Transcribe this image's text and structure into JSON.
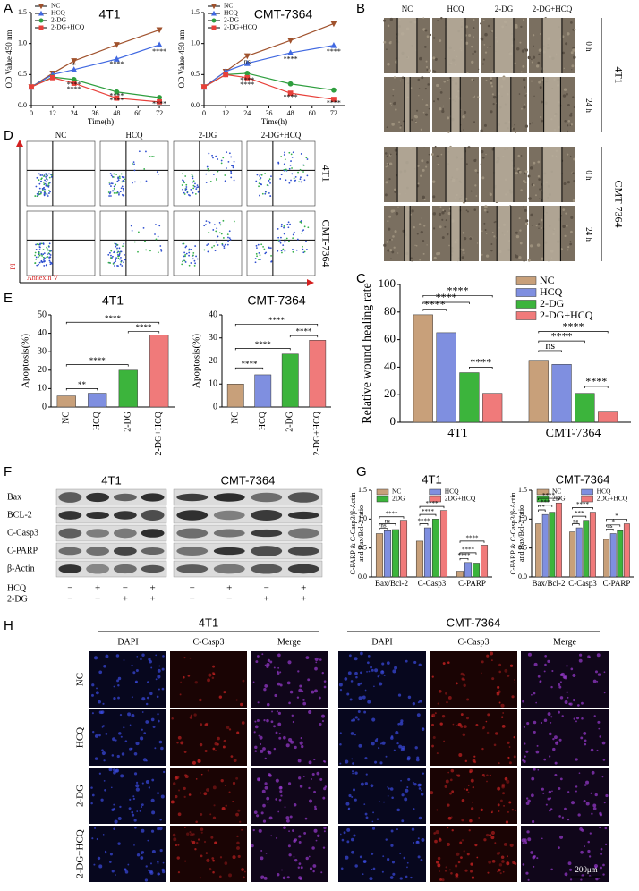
{
  "panel_labels": [
    "A",
    "B",
    "C",
    "D",
    "E",
    "F",
    "G",
    "H"
  ],
  "chart_data": [
    {
      "type": "line",
      "title": "4T1",
      "x": [
        0,
        12,
        24,
        48,
        72
      ],
      "xlim": [
        0,
        78
      ],
      "xticks": [
        0,
        12,
        24,
        36,
        48,
        60,
        72
      ],
      "xlabel": "Time(h)",
      "ylabel": "OD Value 450 nm",
      "ylim": [
        0,
        1.5
      ],
      "yticks": [
        {
          "value": 0,
          "label": "0.0"
        },
        0.5,
        {
          "value": 1,
          "label": "1.0"
        },
        1.5
      ],
      "legend": "upper left",
      "series": [
        {
          "name": "NC",
          "color": "#a0522d",
          "marker": "triangle-down",
          "values": [
            0.3,
            0.52,
            0.72,
            0.98,
            1.22
          ]
        },
        {
          "name": "HCQ",
          "color": "#4169e1",
          "marker": "triangle-up",
          "values": [
            0.3,
            0.5,
            0.58,
            0.75,
            0.98
          ]
        },
        {
          "name": "2-DG",
          "color": "#2e9e3e",
          "marker": "circle",
          "values": [
            0.3,
            0.46,
            0.42,
            0.22,
            0.13
          ]
        },
        {
          "name": "2-DG+HCQ",
          "color": "#e8403a",
          "marker": "square",
          "values": [
            0.3,
            0.45,
            0.36,
            0.12,
            0.06
          ]
        }
      ],
      "annotations": [
        {
          "text": "*",
          "x": 24,
          "y": 0.64
        },
        {
          "text": "****",
          "x": 48,
          "y": 0.66
        },
        {
          "text": "****",
          "x": 72,
          "y": 0.86
        },
        {
          "text": "****",
          "x": 24,
          "y": 0.33
        },
        {
          "text": "****",
          "x": 24,
          "y": 0.26
        },
        {
          "text": "****",
          "x": 48,
          "y": 0.15
        },
        {
          "text": "****",
          "x": 48,
          "y": 0.08
        },
        {
          "text": "****",
          "x": 72,
          "y": 0.02
        }
      ]
    },
    {
      "type": "line",
      "title": "CMT-7364",
      "x": [
        0,
        12,
        24,
        48,
        72
      ],
      "xlim": [
        0,
        78
      ],
      "xticks": [
        0,
        12,
        24,
        36,
        48,
        60,
        72
      ],
      "xlabel": "Time(h)",
      "ylabel": "OD Value 450 nm",
      "ylim": [
        0,
        1.5
      ],
      "yticks": [
        {
          "value": 0,
          "label": "0.0"
        },
        0.5,
        {
          "value": 1,
          "label": "1.0"
        },
        1.5
      ],
      "legend": "upper left",
      "series": [
        {
          "name": "NC",
          "color": "#a0522d",
          "marker": "triangle-down",
          "values": [
            0.3,
            0.55,
            0.8,
            1.05,
            1.32
          ]
        },
        {
          "name": "HCQ",
          "color": "#4169e1",
          "marker": "triangle-up",
          "values": [
            0.3,
            0.55,
            0.68,
            0.85,
            0.97
          ]
        },
        {
          "name": "2-DG",
          "color": "#2e9e3e",
          "marker": "circle",
          "values": [
            0.3,
            0.5,
            0.52,
            0.35,
            0.25
          ]
        },
        {
          "name": "2-DG+HCQ",
          "color": "#e8403a",
          "marker": "square",
          "values": [
            0.3,
            0.5,
            0.45,
            0.2,
            0.1
          ]
        }
      ],
      "annotations": [
        {
          "text": "ns",
          "x": 24,
          "y": 0.7
        },
        {
          "text": "****",
          "x": 48,
          "y": 0.74
        },
        {
          "text": "****",
          "x": 72,
          "y": 0.86
        },
        {
          "text": "****",
          "x": 24,
          "y": 0.4
        },
        {
          "text": "****",
          "x": 24,
          "y": 0.33
        },
        {
          "text": "****",
          "x": 48,
          "y": 0.13
        },
        {
          "text": "****",
          "x": 72,
          "y": 0.03
        }
      ]
    },
    {
      "type": "bar",
      "ylabel": "Relative wound healing rate",
      "categories": [
        "4T1",
        "CMT-7364"
      ],
      "ylim": [
        0,
        100
      ],
      "yticks": [
        0,
        20,
        40,
        60,
        80,
        100
      ],
      "legend": "upper right",
      "series": [
        {
          "name": "NC",
          "color": "#c8a07a",
          "values": [
            78,
            45
          ]
        },
        {
          "name": "HCQ",
          "color": "#7f8fe0",
          "values": [
            65,
            42
          ]
        },
        {
          "name": "2-DG",
          "color": "#3cb43c",
          "values": [
            36,
            21
          ]
        },
        {
          "name": "2-DG+HCQ",
          "color": "#f07a7a",
          "values": [
            21,
            8
          ]
        }
      ],
      "annotations": [
        {
          "text": "****",
          "group": "4T1",
          "between": [
            "NC",
            "HCQ"
          ],
          "y": 82
        },
        {
          "text": "****",
          "group": "4T1",
          "between": [
            "NC",
            "2-DG"
          ],
          "y": 87
        },
        {
          "text": "****",
          "group": "4T1",
          "between": [
            "NC",
            "2-DG+HCQ"
          ],
          "y": 92
        },
        {
          "text": "****",
          "group": "4T1",
          "between": [
            "2-DG",
            "2-DG+HCQ"
          ],
          "y": 40
        },
        {
          "text": "ns",
          "group": "CMT-7364",
          "between": [
            "NC",
            "HCQ"
          ],
          "y": 52
        },
        {
          "text": "****",
          "group": "CMT-7364",
          "between": [
            "NC",
            "2-DG"
          ],
          "y": 59
        },
        {
          "text": "****",
          "group": "CMT-7364",
          "between": [
            "NC",
            "2-DG+HCQ"
          ],
          "y": 66
        },
        {
          "text": "****",
          "group": "CMT-7364",
          "between": [
            "2-DG",
            "2-DG+HCQ"
          ],
          "y": 26
        }
      ]
    },
    {
      "type": "bar",
      "title": "4T1",
      "ylabel": "Apoptosis(%)",
      "categories": [
        "NC",
        "HCQ",
        "2-DG",
        "2-DG+HCQ"
      ],
      "values": [
        6,
        7.5,
        20,
        39
      ],
      "colors": [
        "#c8a07a",
        "#7f8fe0",
        "#3cb43c",
        "#f07a7a"
      ],
      "xtick_rotation": 90,
      "ylim": [
        0,
        50
      ],
      "yticks": [
        0,
        10,
        20,
        30,
        40,
        50
      ],
      "annotations": [
        {
          "text": "**",
          "between": [
            "NC",
            "HCQ"
          ],
          "y": 10
        },
        {
          "text": "****",
          "between": [
            "NC",
            "2-DG"
          ],
          "y": 23
        },
        {
          "text": "****",
          "between": [
            "NC",
            "2-DG+HCQ"
          ],
          "y": 46
        },
        {
          "text": "****",
          "between": [
            "2-DG",
            "2-DG+HCQ"
          ],
          "y": 41
        }
      ]
    },
    {
      "type": "bar",
      "title": "CMT-7364",
      "ylabel": "Apoptosis(%)",
      "categories": [
        "NC",
        "HCQ",
        "2-DG",
        "2-DG+HCQ"
      ],
      "values": [
        10,
        14,
        23,
        29
      ],
      "colors": [
        "#c8a07a",
        "#7f8fe0",
        "#3cb43c",
        "#f07a7a"
      ],
      "xtick_rotation": 90,
      "ylim": [
        0,
        40
      ],
      "yticks": [
        0,
        10,
        20,
        30,
        40
      ],
      "annotations": [
        {
          "text": "****",
          "between": [
            "NC",
            "HCQ"
          ],
          "y": 17
        },
        {
          "text": "****",
          "between": [
            "NC",
            "2-DG"
          ],
          "y": 25.5
        },
        {
          "text": "****",
          "between": [
            "NC",
            "2-DG+HCQ"
          ],
          "y": 36
        },
        {
          "text": "****",
          "between": [
            "2-DG",
            "2-DG+HCQ"
          ],
          "y": 31
        }
      ]
    },
    {
      "type": "bar",
      "title": "4T1",
      "ylabel": [
        "C-PARP & C-Casp3/β-Actin",
        "and Bax/Bcl-2 ratio"
      ],
      "categories": [
        "Bax/Bcl-2",
        "C-Casp3",
        "C-PARP"
      ],
      "ylim": [
        0,
        1.5
      ],
      "yticks": [
        {
          "value": 0,
          "label": "0.0"
        },
        0.5,
        {
          "value": 1,
          "label": "1.0"
        },
        1.5
      ],
      "legend": "upper center",
      "series": [
        {
          "name": "NC",
          "color": "#c8a07a",
          "values": [
            0.75,
            0.62,
            0.1
          ]
        },
        {
          "name": "HCQ",
          "color": "#7f8fe0",
          "values": [
            0.8,
            0.85,
            0.25
          ]
        },
        {
          "name": "2DG",
          "color": "#3cb43c",
          "values": [
            0.82,
            1.0,
            0.24
          ]
        },
        {
          "name": "2DG+HCQ",
          "color": "#f07a7a",
          "values": [
            0.98,
            1.15,
            0.55
          ]
        }
      ],
      "annotations": [
        {
          "text": "ns",
          "group": "Bax/Bcl-2",
          "between": [
            "NC",
            "HCQ"
          ],
          "y": 0.84
        },
        {
          "text": "ns",
          "group": "Bax/Bcl-2",
          "between": [
            "NC",
            "2DG"
          ],
          "y": 0.92
        },
        {
          "text": "****",
          "group": "Bax/Bcl-2",
          "between": [
            "NC",
            "2DG+HCQ"
          ],
          "y": 1.04
        },
        {
          "text": "****",
          "group": "C-Casp3",
          "between": [
            "NC",
            "HCQ"
          ],
          "y": 0.92
        },
        {
          "text": "****",
          "group": "C-Casp3",
          "between": [
            "NC",
            "2DG"
          ],
          "y": 1.08
        },
        {
          "text": "****",
          "group": "C-Casp3",
          "between": [
            "NC",
            "2DG+HCQ"
          ],
          "y": 1.22
        },
        {
          "text": "****",
          "group": "C-PARP",
          "between": [
            "NC",
            "HCQ"
          ],
          "y": 0.32
        },
        {
          "text": "****",
          "group": "C-PARP",
          "between": [
            "NC",
            "2DG"
          ],
          "y": 0.42
        },
        {
          "text": "****",
          "group": "C-PARP",
          "between": [
            "NC",
            "2DG+HCQ"
          ],
          "y": 0.62
        }
      ]
    },
    {
      "type": "bar",
      "title": "CMT-7364",
      "ylabel": [
        "C-PARP & C-Casp3/β-Actin",
        "and Bax/Bcl-2 ratio"
      ],
      "categories": [
        "Bax/Bcl-2",
        "C-Casp3",
        "C-PARP"
      ],
      "ylim": [
        0,
        1.5
      ],
      "yticks": [
        {
          "value": 0,
          "label": "0.0"
        },
        0.5,
        {
          "value": 1,
          "label": "1.0"
        },
        1.5
      ],
      "legend": "upper center",
      "series": [
        {
          "name": "NC",
          "color": "#c8a07a",
          "values": [
            0.92,
            0.78,
            0.65
          ]
        },
        {
          "name": "HCQ",
          "color": "#7f8fe0",
          "values": [
            1.08,
            0.85,
            0.75
          ]
        },
        {
          "name": "2DG",
          "color": "#3cb43c",
          "values": [
            1.12,
            0.98,
            0.8
          ]
        },
        {
          "name": "2DG+HCQ",
          "color": "#f07a7a",
          "values": [
            1.28,
            1.12,
            0.92
          ]
        }
      ],
      "annotations": [
        {
          "text": "**",
          "group": "Bax/Bcl-2",
          "between": [
            "NC",
            "HCQ"
          ],
          "y": 1.16
        },
        {
          "text": "***",
          "group": "Bax/Bcl-2",
          "between": [
            "NC",
            "2DG"
          ],
          "y": 1.24
        },
        {
          "text": "****",
          "group": "Bax/Bcl-2",
          "between": [
            "NC",
            "2DG+HCQ"
          ],
          "y": 1.36
        },
        {
          "text": "ns",
          "group": "C-Casp3",
          "between": [
            "NC",
            "HCQ"
          ],
          "y": 0.92
        },
        {
          "text": "***",
          "group": "C-Casp3",
          "between": [
            "NC",
            "2DG"
          ],
          "y": 1.05
        },
        {
          "text": "****",
          "group": "C-Casp3",
          "between": [
            "NC",
            "2DG+HCQ"
          ],
          "y": 1.2
        },
        {
          "text": "ns",
          "group": "C-PARP",
          "between": [
            "NC",
            "HCQ"
          ],
          "y": 0.83
        },
        {
          "text": "*",
          "group": "C-PARP",
          "between": [
            "NC",
            "2DG"
          ],
          "y": 0.9
        },
        {
          "text": "*",
          "group": "C-PARP",
          "between": [
            "NC",
            "2DG+HCQ"
          ],
          "y": 1.0
        }
      ]
    }
  ],
  "scratch": {
    "columns": [
      "NC",
      "HCQ",
      "2-DG",
      "2-DG+HCQ"
    ],
    "times": [
      "0 h",
      "24 h"
    ],
    "cell_lines": [
      "4T1",
      "CMT-7364"
    ]
  },
  "flow": {
    "columns": [
      "NC",
      "HCQ",
      "2-DG",
      "2-DG+HCQ"
    ],
    "cell_lines": [
      "4T1",
      "CMT-7364"
    ],
    "y_axis": "PI",
    "x_axis": "Annexin V"
  },
  "western": {
    "cell_lines": [
      "4T1",
      "CMT-7364"
    ],
    "proteins": [
      "Bax",
      "BCL-2",
      "C-Casp3",
      "C-PARP",
      "β-Actin"
    ],
    "treatments": [
      {
        "name": "HCQ",
        "signs": [
          "−",
          "+",
          "−",
          "+"
        ]
      },
      {
        "name": "2-DG",
        "signs": [
          "−",
          "−",
          "+",
          "+"
        ]
      }
    ]
  },
  "fluorescence": {
    "cell_lines": [
      "4T1",
      "CMT-7364"
    ],
    "channels": [
      "DAPI",
      "C-Casp3",
      "Merge"
    ],
    "groups": [
      "NC",
      "HCQ",
      "2-DG",
      "2-DG+HCQ"
    ],
    "scale_bar": "200μm"
  }
}
